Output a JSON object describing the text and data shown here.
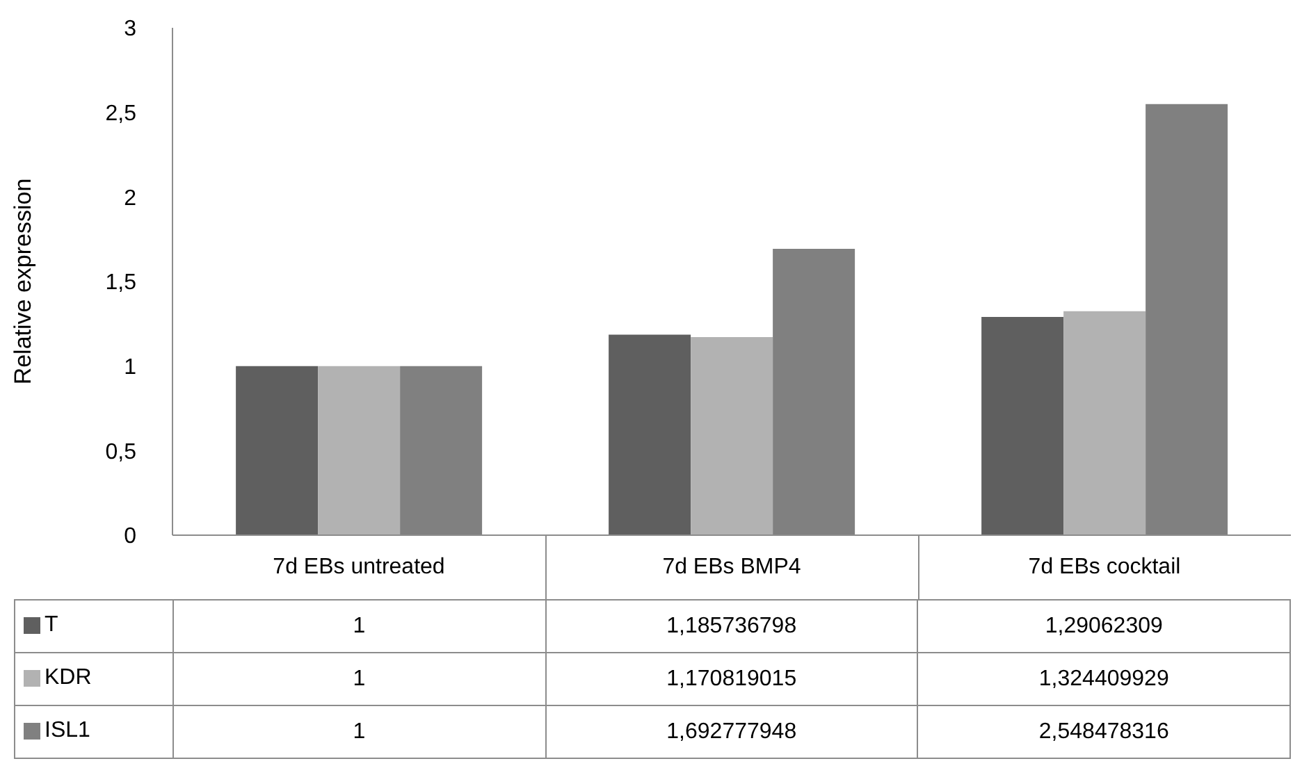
{
  "chart_data": {
    "type": "bar",
    "ylabel": "Relative expression",
    "categories": [
      "7d EBs untreated",
      "7d EBs BMP4",
      "7d EBs cocktail"
    ],
    "series": [
      {
        "name": "T",
        "color": "#5f5f5f",
        "values": [
          1,
          1.185736798,
          1.29062309
        ],
        "value_labels": [
          "1",
          "1,185736798",
          "1,29062309"
        ]
      },
      {
        "name": "KDR",
        "color": "#b2b2b2",
        "values": [
          1,
          1.170819015,
          1.324409929
        ],
        "value_labels": [
          "1",
          "1,170819015",
          "1,324409929"
        ]
      },
      {
        "name": "ISL1",
        "color": "#808080",
        "values": [
          1,
          1.692777948,
          2.548478316
        ],
        "value_labels": [
          "1",
          "1,692777948",
          "2,548478316"
        ]
      }
    ],
    "ylim": [
      0,
      3
    ],
    "yticks": [
      0,
      {
        "value": 0.5,
        "label": "0,5"
      },
      1,
      {
        "value": 1.5,
        "label": "1,5"
      },
      2,
      {
        "value": 2.5,
        "label": "2,5"
      },
      3
    ],
    "legend": "bottom"
  }
}
